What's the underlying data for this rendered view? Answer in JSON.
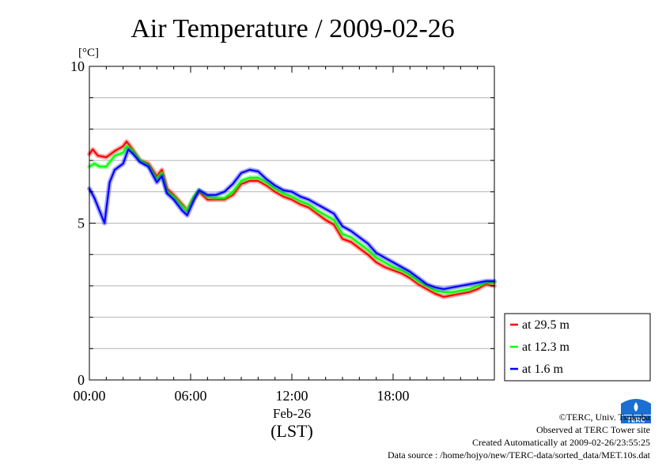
{
  "chart_data": {
    "type": "line",
    "title": "Air Temperature / 2009-02-26",
    "ylabel": "[°C]",
    "ylim": [
      0,
      10
    ],
    "yticks": [
      0,
      5,
      10
    ],
    "xlim": [
      "00:00",
      "24:00"
    ],
    "xticks": [
      "00:00",
      "06:00",
      "12:00",
      "18:00"
    ],
    "xdate": "Feb-26",
    "xunit": "(LST)",
    "grid": true,
    "legend_placement": "bottom-right",
    "series": [
      {
        "name": "at 29.5 m",
        "color": "#ff0000",
        "points": [
          [
            0,
            7.2
          ],
          [
            0.2,
            7.35
          ],
          [
            0.5,
            7.15
          ],
          [
            1,
            7.1
          ],
          [
            1.5,
            7.3
          ],
          [
            2,
            7.45
          ],
          [
            2.2,
            7.6
          ],
          [
            2.5,
            7.4
          ],
          [
            3,
            7.0
          ],
          [
            3.5,
            6.9
          ],
          [
            4,
            6.5
          ],
          [
            4.3,
            6.7
          ],
          [
            4.6,
            6.1
          ],
          [
            5,
            5.9
          ],
          [
            5.5,
            5.6
          ],
          [
            5.8,
            5.4
          ],
          [
            6.2,
            5.8
          ],
          [
            6.5,
            6.0
          ],
          [
            7,
            5.75
          ],
          [
            7.5,
            5.75
          ],
          [
            8,
            5.75
          ],
          [
            8.5,
            5.9
          ],
          [
            9,
            6.25
          ],
          [
            9.5,
            6.35
          ],
          [
            10,
            6.35
          ],
          [
            10.5,
            6.2
          ],
          [
            11,
            6.0
          ],
          [
            11.5,
            5.85
          ],
          [
            12,
            5.75
          ],
          [
            12.5,
            5.6
          ],
          [
            13,
            5.5
          ],
          [
            13.5,
            5.3
          ],
          [
            14,
            5.1
          ],
          [
            14.5,
            4.95
          ],
          [
            15,
            4.5
          ],
          [
            15.5,
            4.4
          ],
          [
            16,
            4.2
          ],
          [
            16.5,
            4.0
          ],
          [
            17,
            3.75
          ],
          [
            17.5,
            3.6
          ],
          [
            18,
            3.5
          ],
          [
            18.5,
            3.4
          ],
          [
            19,
            3.25
          ],
          [
            19.5,
            3.05
          ],
          [
            20,
            2.9
          ],
          [
            20.5,
            2.75
          ],
          [
            21,
            2.65
          ],
          [
            21.5,
            2.7
          ],
          [
            22,
            2.75
          ],
          [
            22.5,
            2.8
          ],
          [
            23,
            2.9
          ],
          [
            23.5,
            3.05
          ],
          [
            24,
            3.0
          ]
        ]
      },
      {
        "name": "at 12.3 m",
        "color": "#00ff00",
        "points": [
          [
            0,
            6.8
          ],
          [
            0.3,
            6.9
          ],
          [
            0.6,
            6.8
          ],
          [
            1,
            6.8
          ],
          [
            1.5,
            7.15
          ],
          [
            2,
            7.25
          ],
          [
            2.2,
            7.45
          ],
          [
            2.5,
            7.35
          ],
          [
            3,
            7.0
          ],
          [
            3.5,
            6.85
          ],
          [
            4,
            6.4
          ],
          [
            4.3,
            6.6
          ],
          [
            4.6,
            6.0
          ],
          [
            5,
            5.85
          ],
          [
            5.5,
            5.55
          ],
          [
            5.8,
            5.4
          ],
          [
            6.2,
            5.85
          ],
          [
            6.5,
            6.05
          ],
          [
            7,
            5.85
          ],
          [
            7.5,
            5.8
          ],
          [
            8,
            5.8
          ],
          [
            8.5,
            6.0
          ],
          [
            9,
            6.35
          ],
          [
            9.5,
            6.45
          ],
          [
            10,
            6.45
          ],
          [
            10.5,
            6.3
          ],
          [
            11,
            6.1
          ],
          [
            11.5,
            5.95
          ],
          [
            12,
            5.85
          ],
          [
            12.5,
            5.7
          ],
          [
            13,
            5.6
          ],
          [
            13.5,
            5.4
          ],
          [
            14,
            5.25
          ],
          [
            14.5,
            5.1
          ],
          [
            15,
            4.65
          ],
          [
            15.5,
            4.55
          ],
          [
            16,
            4.35
          ],
          [
            16.5,
            4.15
          ],
          [
            17,
            3.9
          ],
          [
            17.5,
            3.75
          ],
          [
            18,
            3.6
          ],
          [
            18.5,
            3.5
          ],
          [
            19,
            3.35
          ],
          [
            19.5,
            3.15
          ],
          [
            20,
            3.0
          ],
          [
            20.5,
            2.85
          ],
          [
            21,
            2.8
          ],
          [
            21.5,
            2.8
          ],
          [
            22,
            2.85
          ],
          [
            22.5,
            2.9
          ],
          [
            23,
            3.0
          ],
          [
            23.5,
            3.1
          ],
          [
            24,
            3.1
          ]
        ]
      },
      {
        "name": "at 1.6 m",
        "color": "#0000ff",
        "points": [
          [
            0,
            6.1
          ],
          [
            0.3,
            5.8
          ],
          [
            0.6,
            5.4
          ],
          [
            0.9,
            5.0
          ],
          [
            1.2,
            6.3
          ],
          [
            1.5,
            6.7
          ],
          [
            2,
            6.9
          ],
          [
            2.3,
            7.35
          ],
          [
            2.6,
            7.2
          ],
          [
            3,
            6.95
          ],
          [
            3.5,
            6.8
          ],
          [
            4,
            6.3
          ],
          [
            4.3,
            6.5
          ],
          [
            4.6,
            5.95
          ],
          [
            5,
            5.75
          ],
          [
            5.5,
            5.4
          ],
          [
            5.8,
            5.25
          ],
          [
            6.2,
            5.75
          ],
          [
            6.5,
            6.05
          ],
          [
            7,
            5.9
          ],
          [
            7.5,
            5.9
          ],
          [
            8,
            6.0
          ],
          [
            8.5,
            6.25
          ],
          [
            9,
            6.6
          ],
          [
            9.5,
            6.7
          ],
          [
            10,
            6.65
          ],
          [
            10.5,
            6.4
          ],
          [
            11,
            6.2
          ],
          [
            11.5,
            6.05
          ],
          [
            12,
            6.0
          ],
          [
            12.5,
            5.85
          ],
          [
            13,
            5.75
          ],
          [
            13.5,
            5.6
          ],
          [
            14,
            5.45
          ],
          [
            14.5,
            5.3
          ],
          [
            15,
            4.9
          ],
          [
            15.5,
            4.75
          ],
          [
            16,
            4.55
          ],
          [
            16.5,
            4.35
          ],
          [
            17,
            4.05
          ],
          [
            17.5,
            3.9
          ],
          [
            18,
            3.75
          ],
          [
            18.5,
            3.6
          ],
          [
            19,
            3.45
          ],
          [
            19.5,
            3.25
          ],
          [
            20,
            3.05
          ],
          [
            20.5,
            2.95
          ],
          [
            21,
            2.9
          ],
          [
            21.5,
            2.95
          ],
          [
            22,
            3.0
          ],
          [
            22.5,
            3.05
          ],
          [
            23,
            3.1
          ],
          [
            23.5,
            3.15
          ],
          [
            24,
            3.15
          ]
        ]
      }
    ]
  },
  "credits": {
    "copyright": "©TERC, Univ. Tsukuba",
    "observed": "Observed at TERC Tower site",
    "created": "Created Automatically at 2009-02-26/23:55:25",
    "source": "Data source : /home/hojyo/new/TERC-data/sorted_data/MET.10s.dat"
  },
  "logo": {
    "icon": "terc-logo-icon",
    "text": "TERC",
    "color": "#1a6fd1"
  }
}
